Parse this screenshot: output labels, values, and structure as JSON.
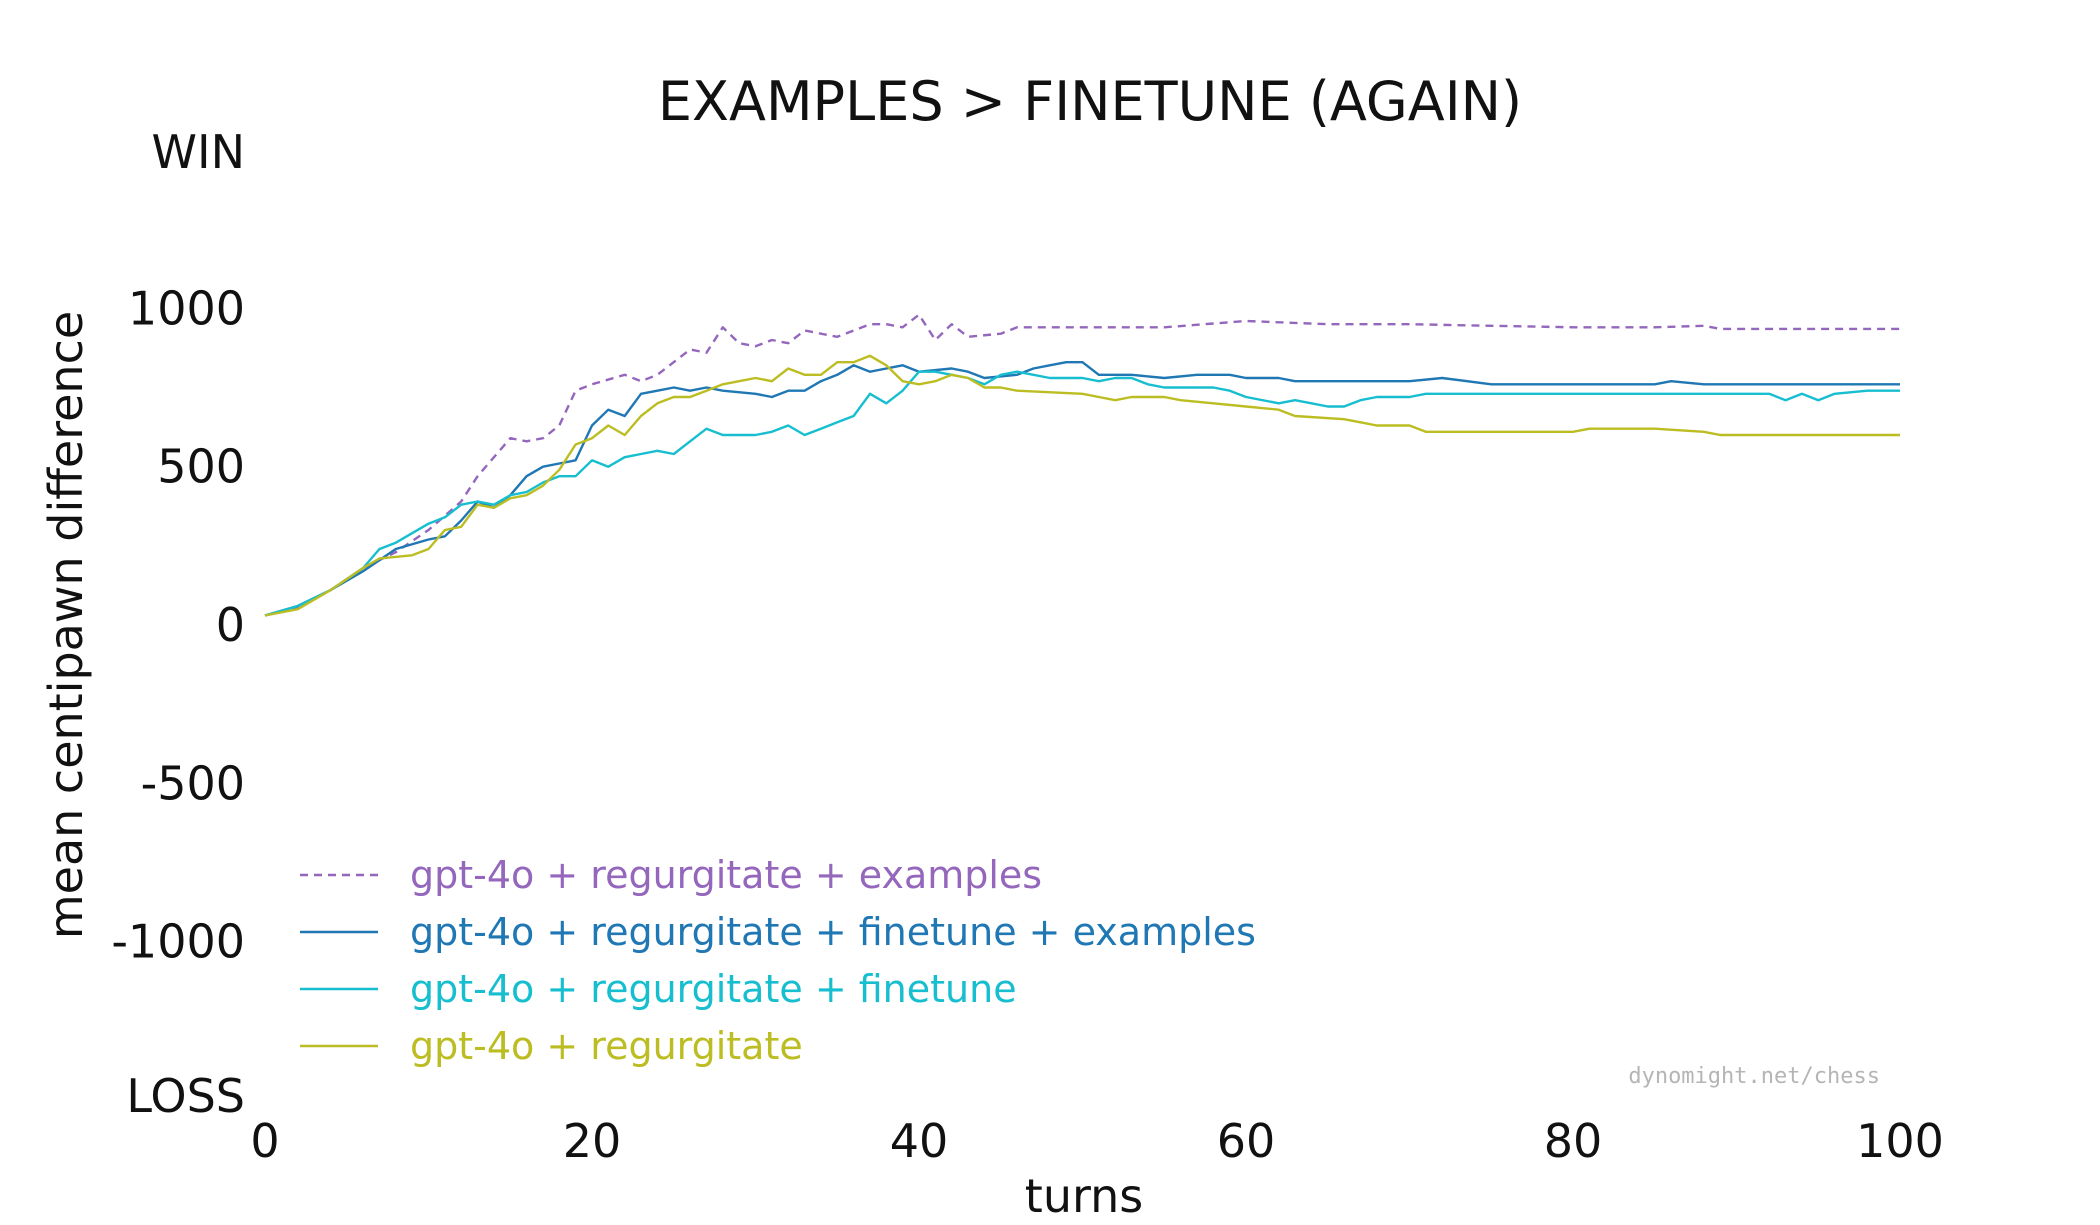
{
  "chart_data": {
    "type": "line",
    "title": "EXAMPLES > FINETUNE (AGAIN)",
    "xlabel": "turns",
    "ylabel": "mean centipawn difference",
    "xlim": [
      0,
      100
    ],
    "ylim": [
      -1500,
      1500
    ],
    "x_ticks": [
      0,
      20,
      40,
      60,
      80,
      100
    ],
    "y_ticks": [
      {
        "value": 1000,
        "label": "1000"
      },
      {
        "value": 500,
        "label": "500"
      },
      {
        "value": 0,
        "label": "0"
      },
      {
        "value": -500,
        "label": "-500"
      },
      {
        "value": -1000,
        "label": "-1000"
      }
    ],
    "end_labels": {
      "top": "WIN",
      "bottom": "LOSS"
    },
    "grid": false,
    "legend_position": "bottom-left",
    "watermark": "dynomight.net/chess",
    "series": [
      {
        "name": "gpt-4o + regurgitate + examples",
        "color": "#9467bd",
        "dashed": true,
        "points": [
          [
            0,
            30
          ],
          [
            2,
            55
          ],
          [
            4,
            110
          ],
          [
            6,
            180
          ],
          [
            8,
            230
          ],
          [
            10,
            300
          ],
          [
            12,
            390
          ],
          [
            13,
            470
          ],
          [
            15,
            590
          ],
          [
            16,
            580
          ],
          [
            17,
            590
          ],
          [
            18,
            630
          ],
          [
            19,
            740
          ],
          [
            20,
            760
          ],
          [
            22,
            790
          ],
          [
            23,
            770
          ],
          [
            24,
            790
          ],
          [
            26,
            870
          ],
          [
            27,
            860
          ],
          [
            28,
            940
          ],
          [
            29,
            890
          ],
          [
            30,
            880
          ],
          [
            31,
            900
          ],
          [
            32,
            890
          ],
          [
            33,
            930
          ],
          [
            35,
            910
          ],
          [
            37,
            950
          ],
          [
            38,
            950
          ],
          [
            39,
            940
          ],
          [
            40,
            980
          ],
          [
            41,
            900
          ],
          [
            42,
            950
          ],
          [
            43,
            910
          ],
          [
            45,
            920
          ],
          [
            46,
            940
          ],
          [
            50,
            940
          ],
          [
            55,
            940
          ],
          [
            60,
            960
          ],
          [
            65,
            950
          ],
          [
            70,
            950
          ],
          [
            75,
            945
          ],
          [
            80,
            940
          ],
          [
            85,
            940
          ],
          [
            88,
            945
          ],
          [
            89,
            935
          ],
          [
            100,
            935
          ]
        ]
      },
      {
        "name": "gpt-4o + regurgitate + finetune + examples",
        "color": "#1f77b4",
        "dashed": false,
        "points": [
          [
            0,
            30
          ],
          [
            2,
            60
          ],
          [
            4,
            110
          ],
          [
            6,
            170
          ],
          [
            8,
            240
          ],
          [
            10,
            270
          ],
          [
            11,
            280
          ],
          [
            12,
            330
          ],
          [
            13,
            390
          ],
          [
            14,
            370
          ],
          [
            15,
            410
          ],
          [
            16,
            470
          ],
          [
            17,
            500
          ],
          [
            18,
            510
          ],
          [
            19,
            520
          ],
          [
            20,
            630
          ],
          [
            21,
            680
          ],
          [
            22,
            660
          ],
          [
            23,
            730
          ],
          [
            24,
            740
          ],
          [
            25,
            750
          ],
          [
            26,
            740
          ],
          [
            27,
            750
          ],
          [
            28,
            740
          ],
          [
            30,
            730
          ],
          [
            31,
            720
          ],
          [
            32,
            740
          ],
          [
            33,
            740
          ],
          [
            34,
            770
          ],
          [
            35,
            790
          ],
          [
            36,
            820
          ],
          [
            37,
            800
          ],
          [
            38,
            810
          ],
          [
            39,
            820
          ],
          [
            40,
            800
          ],
          [
            42,
            810
          ],
          [
            43,
            800
          ],
          [
            44,
            780
          ],
          [
            46,
            790
          ],
          [
            47,
            810
          ],
          [
            48,
            820
          ],
          [
            49,
            830
          ],
          [
            50,
            830
          ],
          [
            51,
            790
          ],
          [
            53,
            790
          ],
          [
            55,
            780
          ],
          [
            57,
            790
          ],
          [
            59,
            790
          ],
          [
            60,
            780
          ],
          [
            62,
            780
          ],
          [
            63,
            770
          ],
          [
            65,
            770
          ],
          [
            70,
            770
          ],
          [
            72,
            780
          ],
          [
            75,
            760
          ],
          [
            78,
            760
          ],
          [
            80,
            760
          ],
          [
            82,
            760
          ],
          [
            85,
            760
          ],
          [
            86,
            770
          ],
          [
            88,
            760
          ],
          [
            90,
            760
          ],
          [
            100,
            760
          ]
        ]
      },
      {
        "name": "gpt-4o + regurgitate + finetune",
        "color": "#17becf",
        "dashed": false,
        "points": [
          [
            0,
            30
          ],
          [
            2,
            60
          ],
          [
            4,
            110
          ],
          [
            6,
            180
          ],
          [
            7,
            240
          ],
          [
            8,
            260
          ],
          [
            9,
            290
          ],
          [
            10,
            320
          ],
          [
            11,
            340
          ],
          [
            12,
            380
          ],
          [
            13,
            390
          ],
          [
            14,
            380
          ],
          [
            15,
            410
          ],
          [
            16,
            420
          ],
          [
            17,
            450
          ],
          [
            18,
            470
          ],
          [
            19,
            470
          ],
          [
            20,
            520
          ],
          [
            21,
            500
          ],
          [
            22,
            530
          ],
          [
            23,
            540
          ],
          [
            24,
            550
          ],
          [
            25,
            540
          ],
          [
            26,
            580
          ],
          [
            27,
            620
          ],
          [
            28,
            600
          ],
          [
            29,
            600
          ],
          [
            30,
            600
          ],
          [
            31,
            610
          ],
          [
            32,
            630
          ],
          [
            33,
            600
          ],
          [
            34,
            620
          ],
          [
            35,
            640
          ],
          [
            36,
            660
          ],
          [
            37,
            730
          ],
          [
            38,
            700
          ],
          [
            39,
            740
          ],
          [
            40,
            800
          ],
          [
            41,
            800
          ],
          [
            42,
            790
          ],
          [
            43,
            780
          ],
          [
            44,
            760
          ],
          [
            45,
            790
          ],
          [
            46,
            800
          ],
          [
            47,
            790
          ],
          [
            48,
            780
          ],
          [
            50,
            780
          ],
          [
            51,
            770
          ],
          [
            52,
            780
          ],
          [
            53,
            780
          ],
          [
            54,
            760
          ],
          [
            55,
            750
          ],
          [
            58,
            750
          ],
          [
            59,
            740
          ],
          [
            60,
            720
          ],
          [
            62,
            700
          ],
          [
            63,
            710
          ],
          [
            64,
            700
          ],
          [
            65,
            690
          ],
          [
            66,
            690
          ],
          [
            67,
            710
          ],
          [
            68,
            720
          ],
          [
            69,
            720
          ],
          [
            70,
            720
          ],
          [
            71,
            730
          ],
          [
            75,
            730
          ],
          [
            80,
            730
          ],
          [
            85,
            730
          ],
          [
            90,
            730
          ],
          [
            92,
            730
          ],
          [
            93,
            710
          ],
          [
            94,
            730
          ],
          [
            95,
            710
          ],
          [
            96,
            730
          ],
          [
            98,
            740
          ],
          [
            100,
            740
          ]
        ]
      },
      {
        "name": "gpt-4o + regurgitate",
        "color": "#bcbd22",
        "dashed": false,
        "points": [
          [
            0,
            30
          ],
          [
            2,
            50
          ],
          [
            4,
            110
          ],
          [
            6,
            180
          ],
          [
            7,
            210
          ],
          [
            9,
            220
          ],
          [
            10,
            240
          ],
          [
            11,
            300
          ],
          [
            12,
            310
          ],
          [
            13,
            380
          ],
          [
            14,
            370
          ],
          [
            15,
            400
          ],
          [
            16,
            410
          ],
          [
            17,
            440
          ],
          [
            18,
            490
          ],
          [
            19,
            570
          ],
          [
            20,
            590
          ],
          [
            21,
            630
          ],
          [
            22,
            600
          ],
          [
            23,
            660
          ],
          [
            24,
            700
          ],
          [
            25,
            720
          ],
          [
            26,
            720
          ],
          [
            27,
            740
          ],
          [
            28,
            760
          ],
          [
            29,
            770
          ],
          [
            30,
            780
          ],
          [
            31,
            770
          ],
          [
            32,
            810
          ],
          [
            33,
            790
          ],
          [
            34,
            790
          ],
          [
            35,
            830
          ],
          [
            36,
            830
          ],
          [
            37,
            850
          ],
          [
            38,
            820
          ],
          [
            39,
            770
          ],
          [
            40,
            760
          ],
          [
            41,
            770
          ],
          [
            42,
            790
          ],
          [
            43,
            780
          ],
          [
            44,
            750
          ],
          [
            45,
            750
          ],
          [
            46,
            740
          ],
          [
            50,
            730
          ],
          [
            51,
            720
          ],
          [
            52,
            710
          ],
          [
            53,
            720
          ],
          [
            55,
            720
          ],
          [
            56,
            710
          ],
          [
            58,
            700
          ],
          [
            60,
            690
          ],
          [
            62,
            680
          ],
          [
            63,
            660
          ],
          [
            66,
            650
          ],
          [
            67,
            640
          ],
          [
            68,
            630
          ],
          [
            70,
            630
          ],
          [
            71,
            610
          ],
          [
            75,
            610
          ],
          [
            80,
            610
          ],
          [
            81,
            620
          ],
          [
            85,
            620
          ],
          [
            88,
            610
          ],
          [
            89,
            600
          ],
          [
            100,
            600
          ]
        ]
      }
    ]
  }
}
